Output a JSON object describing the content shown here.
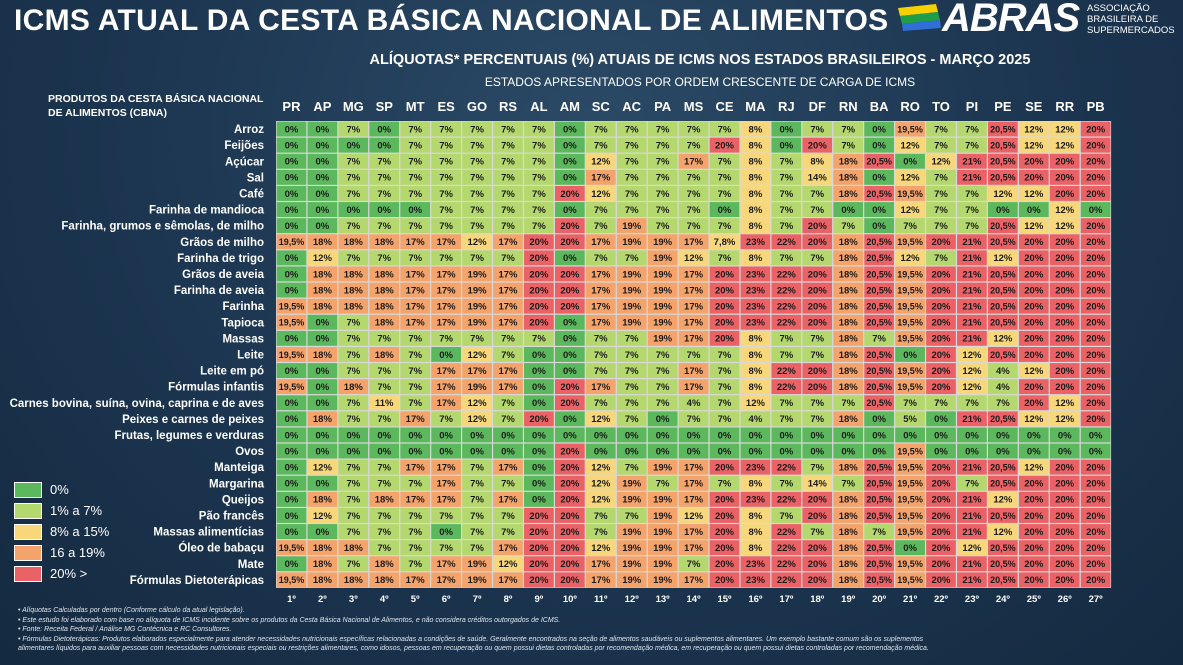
{
  "header": {
    "title": "ICMS ATUAL DA CESTA BÁSICA NACIONAL DE ALIMENTOS",
    "subtitle": "ALÍQUOTAS* PERCENTUAIS (%) ATUAIS DE ICMS NOS ESTADOS BRASILEIROS - MARÇO 2025",
    "subtitle2": "ESTADOS APRESENTADOS POR ORDEM CRESCENTE DE CARGA DE ICMS"
  },
  "logo": {
    "brand": "ABRAS",
    "line1": "ASSOCIAÇÃO",
    "line2": "BRASILEIRA DE",
    "line3": "SUPERMERCADOS"
  },
  "corner_label": {
    "line1": "PRODUTOS DA CESTA BÁSICA NACIONAL",
    "line2": "DE ALIMENTOS (CBNA)"
  },
  "colors": {
    "c0": "#5cb85c",
    "c1": "#b5d86e",
    "c2": "#f7d77a",
    "c3": "#f4a36b",
    "c4": "#ea6266",
    "grid": "#d9d9d9"
  },
  "legend": [
    {
      "label": "0%",
      "color": "#5cb85c"
    },
    {
      "label": "1% a 7%",
      "color": "#b5d86e"
    },
    {
      "label": "8% a 15%",
      "color": "#f7d77a"
    },
    {
      "label": "16 a 19%",
      "color": "#f4a36b"
    },
    {
      "label": "20% >",
      "color": "#ea6266"
    }
  ],
  "chart_data": {
    "type": "heatmap",
    "states": [
      "PR",
      "AP",
      "MG",
      "SP",
      "MT",
      "ES",
      "GO",
      "RS",
      "AL",
      "AM",
      "SC",
      "AC",
      "PA",
      "MS",
      "CE",
      "MA",
      "RJ",
      "DF",
      "RN",
      "BA",
      "RO",
      "TO",
      "PI",
      "PE",
      "SE",
      "RR",
      "PB"
    ],
    "ranks": [
      "1º",
      "2º",
      "3º",
      "4º",
      "5º",
      "6º",
      "7º",
      "8º",
      "9º",
      "10º",
      "11º",
      "12º",
      "13º",
      "14º",
      "15º",
      "16º",
      "17º",
      "18º",
      "19º",
      "20º",
      "21º",
      "22º",
      "23º",
      "24º",
      "25º",
      "26º",
      "27º"
    ],
    "rows": [
      {
        "product": "Arroz",
        "values": [
          "0%",
          "0%",
          "7%",
          "0%",
          "7%",
          "7%",
          "7%",
          "7%",
          "7%",
          "0%",
          "7%",
          "7%",
          "7%",
          "7%",
          "7%",
          "8%",
          "0%",
          "7%",
          "7%",
          "0%",
          "19,5%",
          "7%",
          "7%",
          "20,5%",
          "12%",
          "12%",
          "20%"
        ]
      },
      {
        "product": "Feijões",
        "values": [
          "0%",
          "0%",
          "0%",
          "0%",
          "7%",
          "7%",
          "7%",
          "7%",
          "7%",
          "0%",
          "7%",
          "7%",
          "7%",
          "7%",
          "20%",
          "8%",
          "0%",
          "20%",
          "7%",
          "0%",
          "12%",
          "7%",
          "7%",
          "20,5%",
          "12%",
          "12%",
          "20%"
        ]
      },
      {
        "product": "Açúcar",
        "values": [
          "0%",
          "0%",
          "7%",
          "7%",
          "7%",
          "7%",
          "7%",
          "7%",
          "7%",
          "0%",
          "12%",
          "7%",
          "7%",
          "17%",
          "7%",
          "8%",
          "7%",
          "8%",
          "18%",
          "20,5%",
          "0%",
          "12%",
          "21%",
          "20,5%",
          "20%",
          "20%",
          "20%"
        ]
      },
      {
        "product": "Sal",
        "values": [
          "0%",
          "0%",
          "7%",
          "7%",
          "7%",
          "7%",
          "7%",
          "7%",
          "7%",
          "0%",
          "17%",
          "7%",
          "7%",
          "7%",
          "7%",
          "8%",
          "7%",
          "14%",
          "18%",
          "0%",
          "12%",
          "7%",
          "21%",
          "20,5%",
          "20%",
          "20%",
          "20%"
        ]
      },
      {
        "product": "Café",
        "values": [
          "0%",
          "0%",
          "7%",
          "7%",
          "7%",
          "7%",
          "7%",
          "7%",
          "7%",
          "20%",
          "12%",
          "7%",
          "7%",
          "7%",
          "7%",
          "8%",
          "7%",
          "7%",
          "18%",
          "20,5%",
          "19,5%",
          "7%",
          "7%",
          "12%",
          "12%",
          "20%",
          "20%"
        ]
      },
      {
        "product": "Farinha de mandioca",
        "values": [
          "0%",
          "0%",
          "0%",
          "0%",
          "0%",
          "7%",
          "7%",
          "7%",
          "7%",
          "0%",
          "7%",
          "7%",
          "7%",
          "7%",
          "0%",
          "8%",
          "7%",
          "7%",
          "0%",
          "0%",
          "12%",
          "7%",
          "7%",
          "0%",
          "0%",
          "12%",
          "0%"
        ]
      },
      {
        "product": "Farinha, grumos e sêmolas, de milho",
        "values": [
          "0%",
          "0%",
          "7%",
          "7%",
          "7%",
          "7%",
          "7%",
          "7%",
          "7%",
          "20%",
          "7%",
          "19%",
          "7%",
          "7%",
          "7%",
          "8%",
          "7%",
          "20%",
          "7%",
          "0%",
          "7%",
          "7%",
          "7%",
          "20,5%",
          "12%",
          "12%",
          "20%"
        ]
      },
      {
        "product": "Grãos de milho",
        "values": [
          "19,5%",
          "18%",
          "18%",
          "18%",
          "17%",
          "17%",
          "12%",
          "17%",
          "20%",
          "20%",
          "17%",
          "19%",
          "19%",
          "17%",
          "7,8%",
          "23%",
          "22%",
          "20%",
          "18%",
          "20,5%",
          "19,5%",
          "20%",
          "21%",
          "20,5%",
          "20%",
          "20%",
          "20%"
        ]
      },
      {
        "product": "Farinha de trigo",
        "values": [
          "0%",
          "12%",
          "7%",
          "7%",
          "7%",
          "7%",
          "7%",
          "7%",
          "20%",
          "0%",
          "7%",
          "7%",
          "19%",
          "12%",
          "7%",
          "8%",
          "7%",
          "7%",
          "18%",
          "20,5%",
          "12%",
          "7%",
          "21%",
          "12%",
          "20%",
          "20%",
          "20%"
        ]
      },
      {
        "product": "Grãos de aveia",
        "values": [
          "0%",
          "18%",
          "18%",
          "18%",
          "17%",
          "17%",
          "19%",
          "17%",
          "20%",
          "20%",
          "17%",
          "19%",
          "19%",
          "17%",
          "20%",
          "23%",
          "22%",
          "20%",
          "18%",
          "20,5%",
          "19,5%",
          "20%",
          "21%",
          "20,5%",
          "20%",
          "20%",
          "20%"
        ]
      },
      {
        "product": "Farinha de aveia",
        "values": [
          "0%",
          "18%",
          "18%",
          "18%",
          "17%",
          "17%",
          "19%",
          "17%",
          "20%",
          "20%",
          "17%",
          "19%",
          "19%",
          "17%",
          "20%",
          "23%",
          "22%",
          "20%",
          "18%",
          "20,5%",
          "19,5%",
          "20%",
          "21%",
          "20,5%",
          "20%",
          "20%",
          "20%"
        ]
      },
      {
        "product": "Farinha",
        "values": [
          "19,5%",
          "18%",
          "18%",
          "18%",
          "17%",
          "17%",
          "19%",
          "17%",
          "20%",
          "20%",
          "17%",
          "19%",
          "19%",
          "17%",
          "20%",
          "23%",
          "22%",
          "20%",
          "18%",
          "20,5%",
          "19,5%",
          "20%",
          "21%",
          "20,5%",
          "20%",
          "20%",
          "20%"
        ]
      },
      {
        "product": "Tapioca",
        "values": [
          "19,5%",
          "0%",
          "7%",
          "18%",
          "17%",
          "17%",
          "19%",
          "17%",
          "20%",
          "0%",
          "17%",
          "19%",
          "19%",
          "17%",
          "20%",
          "23%",
          "22%",
          "20%",
          "18%",
          "20,5%",
          "19,5%",
          "20%",
          "21%",
          "20,5%",
          "20%",
          "20%",
          "20%"
        ]
      },
      {
        "product": "Massas",
        "values": [
          "0%",
          "0%",
          "7%",
          "7%",
          "7%",
          "7%",
          "7%",
          "7%",
          "7%",
          "0%",
          "7%",
          "7%",
          "19%",
          "17%",
          "20%",
          "8%",
          "7%",
          "7%",
          "18%",
          "7%",
          "19,5%",
          "20%",
          "21%",
          "12%",
          "20%",
          "20%",
          "20%"
        ]
      },
      {
        "product": "Leite",
        "values": [
          "19,5%",
          "18%",
          "7%",
          "18%",
          "7%",
          "0%",
          "12%",
          "7%",
          "0%",
          "0%",
          "7%",
          "7%",
          "7%",
          "7%",
          "7%",
          "8%",
          "7%",
          "7%",
          "18%",
          "20,5%",
          "0%",
          "20%",
          "12%",
          "20,5%",
          "20%",
          "20%",
          "20%"
        ]
      },
      {
        "product": "Leite em pó",
        "values": [
          "0%",
          "0%",
          "7%",
          "7%",
          "7%",
          "17%",
          "17%",
          "17%",
          "0%",
          "0%",
          "7%",
          "7%",
          "7%",
          "17%",
          "7%",
          "8%",
          "22%",
          "20%",
          "18%",
          "20,5%",
          "19,5%",
          "20%",
          "12%",
          "4%",
          "12%",
          "20%",
          "20%"
        ]
      },
      {
        "product": "Fórmulas infantis",
        "values": [
          "19,5%",
          "0%",
          "18%",
          "7%",
          "7%",
          "17%",
          "19%",
          "17%",
          "0%",
          "20%",
          "17%",
          "7%",
          "7%",
          "17%",
          "7%",
          "8%",
          "22%",
          "20%",
          "18%",
          "20,5%",
          "19,5%",
          "20%",
          "12%",
          "4%",
          "20%",
          "20%",
          "20%"
        ]
      },
      {
        "product": "Carnes bovina, suína, ovina, caprina e de aves",
        "values": [
          "0%",
          "0%",
          "7%",
          "11%",
          "7%",
          "17%",
          "12%",
          "7%",
          "0%",
          "20%",
          "7%",
          "7%",
          "7%",
          "4%",
          "7%",
          "12%",
          "7%",
          "7%",
          "7%",
          "20,5%",
          "7%",
          "7%",
          "7%",
          "7%",
          "20%",
          "12%",
          "20%"
        ]
      },
      {
        "product": "Peixes e carnes de peixes",
        "values": [
          "0%",
          "18%",
          "7%",
          "7%",
          "17%",
          "7%",
          "12%",
          "7%",
          "20%",
          "0%",
          "12%",
          "7%",
          "0%",
          "7%",
          "7%",
          "4%",
          "7%",
          "7%",
          "18%",
          "0%",
          "5%",
          "0%",
          "21%",
          "20,5%",
          "12%",
          "12%",
          "20%"
        ]
      },
      {
        "product": "Frutas, legumes e verduras",
        "values": [
          "0%",
          "0%",
          "0%",
          "0%",
          "0%",
          "0%",
          "0%",
          "0%",
          "0%",
          "0%",
          "0%",
          "0%",
          "0%",
          "0%",
          "0%",
          "0%",
          "0%",
          "0%",
          "0%",
          "0%",
          "0%",
          "0%",
          "0%",
          "0%",
          "0%",
          "0%",
          "0%"
        ]
      },
      {
        "product": "Ovos",
        "values": [
          "0%",
          "0%",
          "0%",
          "0%",
          "0%",
          "0%",
          "0%",
          "0%",
          "0%",
          "20%",
          "0%",
          "0%",
          "0%",
          "0%",
          "0%",
          "0%",
          "0%",
          "0%",
          "0%",
          "0%",
          "19,5%",
          "0%",
          "0%",
          "0%",
          "0%",
          "0%",
          "0%"
        ]
      },
      {
        "product": "Manteiga",
        "values": [
          "0%",
          "12%",
          "7%",
          "7%",
          "17%",
          "17%",
          "7%",
          "17%",
          "0%",
          "20%",
          "12%",
          "7%",
          "19%",
          "17%",
          "20%",
          "23%",
          "22%",
          "7%",
          "18%",
          "20,5%",
          "19,5%",
          "20%",
          "21%",
          "20,5%",
          "12%",
          "20%",
          "20%"
        ]
      },
      {
        "product": "Margarina",
        "values": [
          "0%",
          "0%",
          "7%",
          "7%",
          "7%",
          "17%",
          "7%",
          "7%",
          "0%",
          "20%",
          "12%",
          "19%",
          "7%",
          "17%",
          "7%",
          "8%",
          "7%",
          "14%",
          "7%",
          "20,5%",
          "19,5%",
          "20%",
          "7%",
          "20,5%",
          "20%",
          "20%",
          "20%"
        ]
      },
      {
        "product": "Queijos",
        "values": [
          "0%",
          "18%",
          "7%",
          "18%",
          "17%",
          "17%",
          "7%",
          "17%",
          "0%",
          "20%",
          "12%",
          "19%",
          "19%",
          "17%",
          "20%",
          "23%",
          "22%",
          "20%",
          "18%",
          "20,5%",
          "19,5%",
          "20%",
          "21%",
          "12%",
          "20%",
          "20%",
          "20%"
        ]
      },
      {
        "product": "Pão francês",
        "values": [
          "0%",
          "12%",
          "7%",
          "7%",
          "7%",
          "7%",
          "7%",
          "7%",
          "20%",
          "20%",
          "7%",
          "7%",
          "19%",
          "12%",
          "20%",
          "8%",
          "7%",
          "20%",
          "18%",
          "20,5%",
          "19,5%",
          "20%",
          "21%",
          "20,5%",
          "20%",
          "20%",
          "20%"
        ]
      },
      {
        "product": "Massas alimentícias",
        "values": [
          "0%",
          "0%",
          "7%",
          "7%",
          "7%",
          "0%",
          "7%",
          "7%",
          "20%",
          "20%",
          "7%",
          "19%",
          "19%",
          "17%",
          "20%",
          "8%",
          "22%",
          "7%",
          "18%",
          "7%",
          "19,5%",
          "20%",
          "21%",
          "12%",
          "20%",
          "20%",
          "20%"
        ]
      },
      {
        "product": "Óleo de babaçu",
        "values": [
          "19,5%",
          "18%",
          "18%",
          "7%",
          "7%",
          "7%",
          "7%",
          "17%",
          "20%",
          "20%",
          "12%",
          "19%",
          "19%",
          "17%",
          "20%",
          "8%",
          "22%",
          "20%",
          "18%",
          "20,5%",
          "0%",
          "20%",
          "12%",
          "20,5%",
          "20%",
          "20%",
          "20%"
        ]
      },
      {
        "product": "Mate",
        "values": [
          "0%",
          "18%",
          "7%",
          "18%",
          "7%",
          "17%",
          "19%",
          "12%",
          "20%",
          "20%",
          "17%",
          "19%",
          "19%",
          "7%",
          "20%",
          "23%",
          "22%",
          "20%",
          "18%",
          "20,5%",
          "19,5%",
          "20%",
          "21%",
          "20,5%",
          "20%",
          "20%",
          "20%"
        ]
      },
      {
        "product": "Fórmulas Dietoterápicas",
        "values": [
          "19,5%",
          "18%",
          "18%",
          "18%",
          "17%",
          "17%",
          "19%",
          "17%",
          "20%",
          "20%",
          "17%",
          "19%",
          "19%",
          "17%",
          "20%",
          "23%",
          "22%",
          "20%",
          "18%",
          "20,5%",
          "19,5%",
          "20%",
          "21%",
          "20,5%",
          "20%",
          "20%",
          "20%"
        ]
      }
    ]
  },
  "footer": [
    "• Alíquotas Calculadas por dentro (Conforme cálculo da atual legislação).",
    "• Este estudo foi elaborado com base no alíquota de ICMS incidente sobre os produtos da Cesta Básica Nacional de Alimentos, e não considera créditos outorgados de ICMS.",
    "• Fonte: Receita Federal / Análise MG Contécnica e RC Consultores.",
    "• Fórmulas Dietoterápicas: Produtos elaborados especialmente para atender necessidades nutricionais específicas relacionadas a condições de saúde. Geralmente encontrados na seção de alimentos saudáveis ou suplementos alimentares. Um exemplo bastante comum são os suplementos",
    "alimentares líquidos para auxiliar pessoas com necessidades nutricionais especiais ou restrições alimentares, como idosos, pessoas em recuperação ou quem possui dietas controladas por recomendação médica, em recuperação ou quem possui dietas controladas por recomendação médica."
  ]
}
